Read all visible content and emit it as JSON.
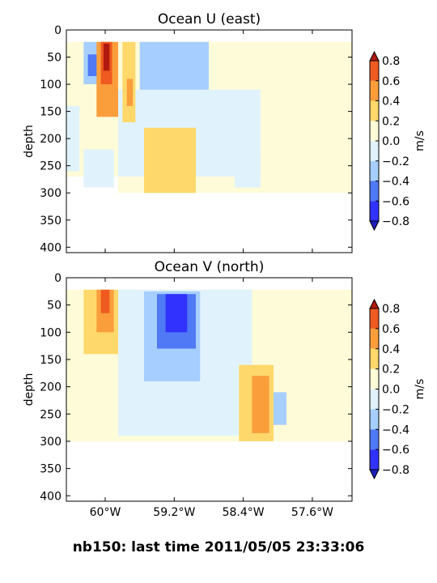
{
  "figure_title": "nb150: last time 2011/05/05 23:33:06",
  "chart_data": [
    {
      "type": "heatmap",
      "title": "Ocean U (east)",
      "ylabel": "depth",
      "xlabel": "",
      "ylim": [
        410,
        0
      ],
      "yticks": [
        "0",
        "50",
        "100",
        "150",
        "200",
        "250",
        "300",
        "350",
        "400"
      ],
      "xlim": [
        -60.45,
        -57.14
      ],
      "xticks": [
        {
          "value": -60.0,
          "label": "60°W"
        },
        {
          "value": -59.2,
          "label": "59.2°W"
        },
        {
          "value": -58.4,
          "label": "58.4°W"
        },
        {
          "value": -57.6,
          "label": "57.6°W"
        }
      ],
      "colorbar": {
        "label": "m/s",
        "levels": [
          -0.8,
          -0.6,
          -0.4,
          -0.2,
          0.0,
          0.2,
          0.4,
          0.6,
          0.8
        ],
        "tick_labels": [
          "−0.8",
          "−0.6",
          "−0.4",
          "−0.2",
          "0.0",
          "0.2",
          "0.4",
          "0.6",
          "0.8"
        ],
        "colors": [
          "#3232ff",
          "#4f79f5",
          "#a6cfff",
          "#e0f3fc",
          "#fefbd8",
          "#ffd86b",
          "#fa9e3c",
          "#ef5a20"
        ],
        "extend_low_color": "#1f1fbf",
        "extend_high_color": "#b01a0f"
      },
      "fields": [
        {
          "lon": [
            -60.45,
            -59.85
          ],
          "depth": [
            22,
            270
          ],
          "value": 0.1
        },
        {
          "lon": [
            -60.45,
            -60.3
          ],
          "depth": [
            140,
            260
          ],
          "value": -0.1
        },
        {
          "lon": [
            -60.25,
            -59.9
          ],
          "depth": [
            220,
            290
          ],
          "value": -0.1
        },
        {
          "lon": [
            -59.85,
            -57.14
          ],
          "depth": [
            22,
            300
          ],
          "value": 0.1
        },
        {
          "lon": [
            -59.85,
            -58.2
          ],
          "depth": [
            110,
            270
          ],
          "value": -0.1
        },
        {
          "lon": [
            -59.6,
            -58.8
          ],
          "depth": [
            22,
            110
          ],
          "value": -0.3
        },
        {
          "lon": [
            -60.25,
            -59.95
          ],
          "depth": [
            22,
            100
          ],
          "value": -0.3
        },
        {
          "lon": [
            -60.2,
            -60.05
          ],
          "depth": [
            45,
            85
          ],
          "value": -0.5
        },
        {
          "lon": [
            -60.1,
            -59.85
          ],
          "depth": [
            22,
            160
          ],
          "value": 0.5
        },
        {
          "lon": [
            -60.05,
            -59.92
          ],
          "depth": [
            22,
            100
          ],
          "value": 0.7
        },
        {
          "lon": [
            -60.02,
            -59.95
          ],
          "depth": [
            25,
            75
          ],
          "value": 0.85
        },
        {
          "lon": [
            -59.8,
            -59.65
          ],
          "depth": [
            22,
            170
          ],
          "value": 0.3
        },
        {
          "lon": [
            -59.75,
            -59.68
          ],
          "depth": [
            90,
            140
          ],
          "value": 0.5
        },
        {
          "lon": [
            -59.55,
            -58.95
          ],
          "depth": [
            180,
            300
          ],
          "value": 0.3
        },
        {
          "lon": [
            -58.5,
            -58.2
          ],
          "depth": [
            220,
            290
          ],
          "value": -0.1
        }
      ]
    },
    {
      "type": "heatmap",
      "title": "Ocean V (north)",
      "ylabel": "depth",
      "xlabel": "",
      "ylim": [
        410,
        0
      ],
      "yticks": [
        "0",
        "50",
        "100",
        "150",
        "200",
        "250",
        "300",
        "350",
        "400"
      ],
      "xlim": [
        -60.45,
        -57.14
      ],
      "xticks": [
        {
          "value": -60.0,
          "label": "60°W"
        },
        {
          "value": -59.2,
          "label": "59.2°W"
        },
        {
          "value": -58.4,
          "label": "58.4°W"
        },
        {
          "value": -57.6,
          "label": "57.6°W"
        }
      ],
      "colorbar": {
        "label": "m/s",
        "levels": [
          -0.8,
          -0.6,
          -0.4,
          -0.2,
          0.0,
          0.2,
          0.4,
          0.6,
          0.8
        ],
        "tick_labels": [
          "−0.8",
          "−0.6",
          "−0.4",
          "−0.2",
          "0.0",
          "0.2",
          "0.4",
          "0.6",
          "0.8"
        ],
        "colors": [
          "#3232ff",
          "#4f79f5",
          "#a6cfff",
          "#e0f3fc",
          "#fefbd8",
          "#ffd86b",
          "#fa9e3c",
          "#ef5a20"
        ],
        "extend_low_color": "#1f1fbf",
        "extend_high_color": "#b01a0f"
      },
      "fields": [
        {
          "lon": [
            -60.45,
            -57.14
          ],
          "depth": [
            22,
            300
          ],
          "value": 0.1
        },
        {
          "lon": [
            -59.85,
            -58.3
          ],
          "depth": [
            22,
            290
          ],
          "value": -0.1
        },
        {
          "lon": [
            -59.55,
            -58.9
          ],
          "depth": [
            25,
            190
          ],
          "value": -0.3
        },
        {
          "lon": [
            -59.4,
            -58.95
          ],
          "depth": [
            30,
            130
          ],
          "value": -0.5
        },
        {
          "lon": [
            -59.3,
            -59.05
          ],
          "depth": [
            30,
            100
          ],
          "value": -0.7
        },
        {
          "lon": [
            -60.25,
            -59.85
          ],
          "depth": [
            22,
            140
          ],
          "value": 0.3
        },
        {
          "lon": [
            -60.1,
            -59.9
          ],
          "depth": [
            22,
            100
          ],
          "value": 0.5
        },
        {
          "lon": [
            -60.05,
            -59.95
          ],
          "depth": [
            22,
            65
          ],
          "value": 0.7
        },
        {
          "lon": [
            -58.45,
            -58.05
          ],
          "depth": [
            160,
            300
          ],
          "value": 0.3
        },
        {
          "lon": [
            -58.3,
            -58.1
          ],
          "depth": [
            180,
            285
          ],
          "value": 0.5
        },
        {
          "lon": [
            -58.05,
            -57.9
          ],
          "depth": [
            210,
            270
          ],
          "value": -0.3
        }
      ]
    }
  ]
}
